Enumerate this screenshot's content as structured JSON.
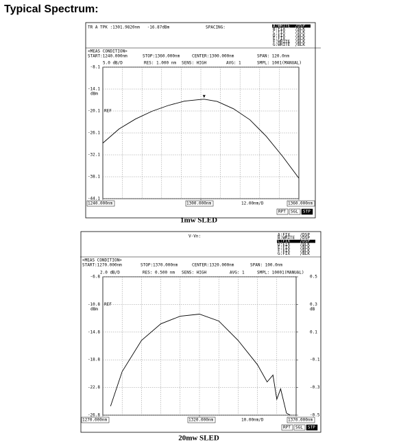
{
  "title": "Typical Spectrum:",
  "chart_data": [
    {
      "type": "line",
      "trace_info": "TR A TPK :1301.9820nm   -16.87dBm",
      "spacing": "SPACING:",
      "traces": [
        "A:WRITE  /DSP",
        "B:FIX    /BLK",
        "C:FIX    /BLK",
        "D:FIX    /BLK",
        "E:FIX    /BLK",
        "F:WRITE  /BLK",
        "G:WRITE  /BLK"
      ],
      "meas_condition": "<MEAS CONDITION>",
      "start": "START:1240.000nm",
      "stop": "STOP:1360.000nm",
      "center": "CENTER:1300.000nm",
      "span": "SPAN: 120.0nm",
      "scale": "5.0 dB/D",
      "res": "RES: 1.000 nm",
      "sens": "SENS: HIGH",
      "avg": "AVG: 1",
      "smpl": "SMPL: 1001(MANUAL)",
      "y_unit": "dBm",
      "ref": "REF",
      "x_div": "12.00nm/D",
      "buttons": [
        "RPT",
        "SGL",
        "STP"
      ],
      "caption": "1mw SLED",
      "x": [
        1240,
        1250,
        1260,
        1270,
        1280,
        1290,
        1300,
        1302,
        1310,
        1320,
        1330,
        1340,
        1350,
        1360
      ],
      "values": [
        -28.9,
        -25.0,
        -22.3,
        -20.2,
        -18.6,
        -17.4,
        -16.95,
        -16.87,
        -17.5,
        -19.5,
        -22.5,
        -27.0,
        -32.5,
        -38.5
      ],
      "color": "#000000",
      "xlim": [
        1240,
        1360
      ],
      "xticks": [
        {
          "value": 1240,
          "label": "1240.000nm"
        },
        {
          "value": 1300,
          "label": "1300.000nm"
        },
        {
          "value": 1360,
          "label": "1360.000nm"
        }
      ],
      "ylim": [
        -44.1,
        -8.1
      ],
      "yticks": [
        -8.1,
        -14.1,
        -20.1,
        -26.1,
        -32.1,
        -38.1,
        -44.1
      ],
      "grid": true
    },
    {
      "type": "line",
      "trace_info": "V-Vn:",
      "traces": [
        "A:FIX    /DSP",
        "B:WRITE  /DSP",
        "C:FIX    /DSP",
        "D:FIX    /BLK",
        "E:FIX    /BLK",
        "F:FIX    /BLK",
        "G:FIX    /BLK"
      ],
      "meas_condition": "<MEAS CONDITION>",
      "start": "START:1270.000nm",
      "stop": "STOP:1370.000nm",
      "center": "CENTER:1320.000nm",
      "span": "SPAN: 100.0nm",
      "scale": "2.0 dB/D",
      "res": "RES: 0.500 nm",
      "sens": "SENS: HIGH",
      "avg": "AVG: 1",
      "smpl": "SMPL: 10001(MANUAL)",
      "y_unit": "dBm",
      "y2_unit": "dB",
      "ref": "REF",
      "x_div": "10.00nm/D",
      "buttons": [
        "RPT",
        "SGL",
        "STP"
      ],
      "caption": "20mw SLED",
      "x": [
        1274,
        1280,
        1290,
        1300,
        1310,
        1320,
        1330,
        1340,
        1350,
        1355,
        1358,
        1360,
        1362,
        1365,
        1367
      ],
      "values": [
        -25.5,
        -20.5,
        -16.0,
        -13.6,
        -12.5,
        -12.2,
        -13.2,
        -16.0,
        -19.5,
        -22.0,
        -21.0,
        -24.5,
        -23.0,
        -26.5,
        -26.8
      ],
      "color": "#000000",
      "xlim": [
        1270,
        1370
      ],
      "xticks": [
        {
          "value": 1270,
          "label": "1270.000nm"
        },
        {
          "value": 1320,
          "label": "1320.000nm"
        },
        {
          "value": 1370,
          "label": "1370.000nm"
        }
      ],
      "ylim": [
        -26.8,
        -6.8
      ],
      "yticks": [
        -6.8,
        -10.8,
        -14.8,
        -18.8,
        -22.8,
        -26.8
      ],
      "y2lim": [
        -0.5,
        0.5
      ],
      "y2ticks": [
        0.5,
        0.3,
        0.1,
        -0.1,
        -0.3,
        -0.5
      ],
      "grid": true
    }
  ]
}
